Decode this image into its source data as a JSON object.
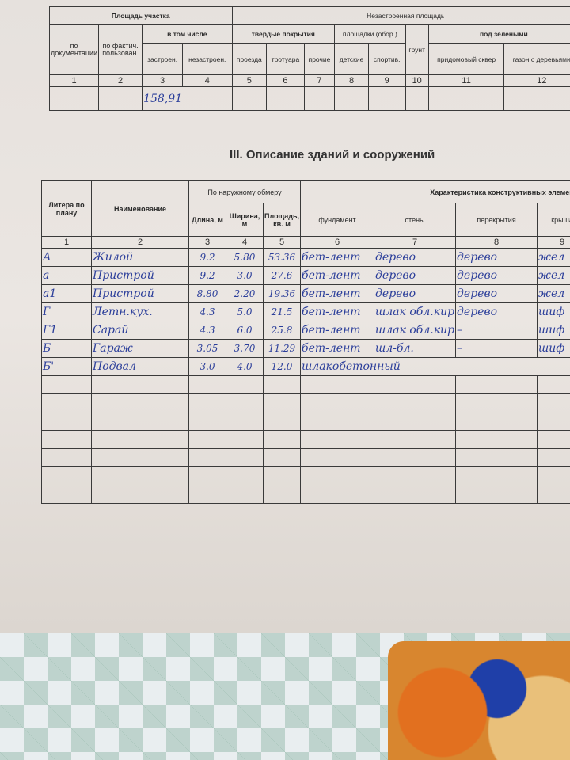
{
  "top_table": {
    "group_area": "Площадь участка",
    "group_unbuilt": "Незастроенная площадь",
    "by_docs": "по документации",
    "by_fact": "по фактич. пользован.",
    "incl": "в том числе",
    "built": "застроен.",
    "unbuilt": "незастроен.",
    "hard": "твердые покрытия",
    "drive": "проезда",
    "sidewalk": "тротуара",
    "other": "прочие",
    "sites": "площадки (обор.)",
    "kids": "детские",
    "sport": "спортив.",
    "soil": "грунт",
    "green": "под зелеными",
    "yard": "придомовый сквер",
    "lawn": "газон с деревьями",
    "numbers": [
      "1",
      "2",
      "3",
      "4",
      "5",
      "6",
      "7",
      "8",
      "9",
      "10",
      "11",
      "12"
    ],
    "built_value": "158,91"
  },
  "section_title": "III. Описание зданий и сооружений",
  "buildings": {
    "headers": {
      "letter": "Литера по плану",
      "name": "Наименование",
      "outer": "По наружному обмеру",
      "length": "Длина, м",
      "width": "Ширина, м",
      "area": "Площадь, кв. м",
      "char": "Характеристика конструктивных элементов",
      "foundation": "фундамент",
      "walls": "стены",
      "floors": "перекрытия",
      "roof": "крыша"
    },
    "numbers": [
      "1",
      "2",
      "3",
      "4",
      "5",
      "6",
      "7",
      "8",
      "9"
    ],
    "rows": [
      {
        "letter": "А",
        "name": "Жилой",
        "length": "9.2",
        "width": "5.80",
        "area": "53.36",
        "foundation": "бет-лент",
        "walls": "дерево",
        "floors": "дерево",
        "roof": "жел"
      },
      {
        "letter": "а",
        "name": "Пристрой",
        "length": "9.2",
        "width": "3.0",
        "area": "27.6",
        "foundation": "бет-лент",
        "walls": "дерево",
        "floors": "дерево",
        "roof": "жел"
      },
      {
        "letter": "а1",
        "name": "Пристрой",
        "length": "8.80",
        "width": "2.20",
        "area": "19.36",
        "foundation": "бет-лент",
        "walls": "дерево",
        "floors": "дерево",
        "roof": "жел"
      },
      {
        "letter": "Г",
        "name": "Летн.кух.",
        "length": "4.3",
        "width": "5.0",
        "area": "21.5",
        "foundation": "бет-лент",
        "walls": "шлак обл.кир",
        "floors": "дерево",
        "roof": "шиф"
      },
      {
        "letter": "Г1",
        "name": "Сарай",
        "length": "4.3",
        "width": "6.0",
        "area": "25.8",
        "foundation": "бет-лент",
        "walls": "шлак обл.кир",
        "floors": "–",
        "roof": "шиф"
      },
      {
        "letter": "Б",
        "name": "Гараж",
        "length": "3.05",
        "width": "3.70",
        "area": "11.29",
        "foundation": "бет-лент",
        "walls": "шл-бл.",
        "floors": "–",
        "roof": "шиф"
      },
      {
        "letter": "Б'",
        "name": "Подвал",
        "length": "3.0",
        "width": "4.0",
        "area": "12.0",
        "foundation": "шлакобетонный",
        "walls": "",
        "floors": "",
        "roof": ""
      }
    ]
  },
  "colors": {
    "ink": "#2b3e9a",
    "paper": "#e6e1dd"
  }
}
